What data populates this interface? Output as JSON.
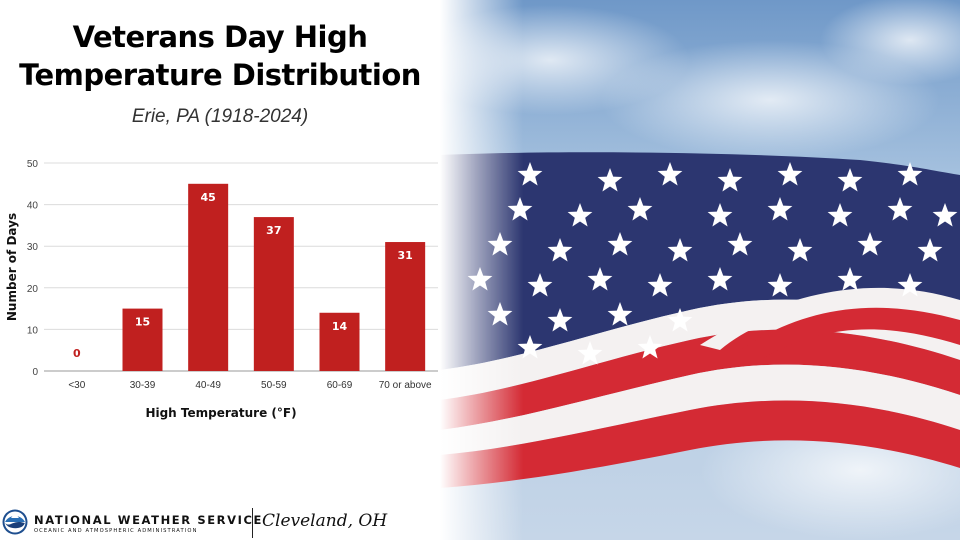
{
  "header": {
    "title_line1": "Veterans Day High",
    "title_line2": "Temperature Distribution",
    "subtitle": "Erie, PA (1918-2024)"
  },
  "chart_data": {
    "type": "bar",
    "categories": [
      "<30",
      "30-39",
      "40-49",
      "50-59",
      "60-69",
      "70 or above"
    ],
    "values": [
      0,
      15,
      45,
      37,
      14,
      31
    ],
    "data_labels": [
      "0",
      "15",
      "45",
      "37",
      "14",
      "31"
    ],
    "xlabel": "High Temperature (°F)",
    "ylabel": "Number of Days",
    "ylim": [
      0,
      50
    ],
    "yticks": [
      "0",
      "10",
      "20",
      "30",
      "40",
      "50"
    ],
    "grid": true,
    "bar_color": "#c0201f",
    "label_color_on_bar": "#ffffff",
    "label_color_zero": "#c0201f"
  },
  "footer": {
    "org_name": "NATIONAL WEATHER SERVICE",
    "org_sub": "OCEANIC AND ATMOSPHERIC ADMINISTRATION",
    "office": "Cleveland, OH"
  },
  "photo": {
    "subject": "american-flag-icon",
    "colors": {
      "sky": "#9fbfdd",
      "canton": "#2c3670",
      "stripe_red": "#d42a34",
      "stripe_white": "#f4f1f1"
    }
  }
}
